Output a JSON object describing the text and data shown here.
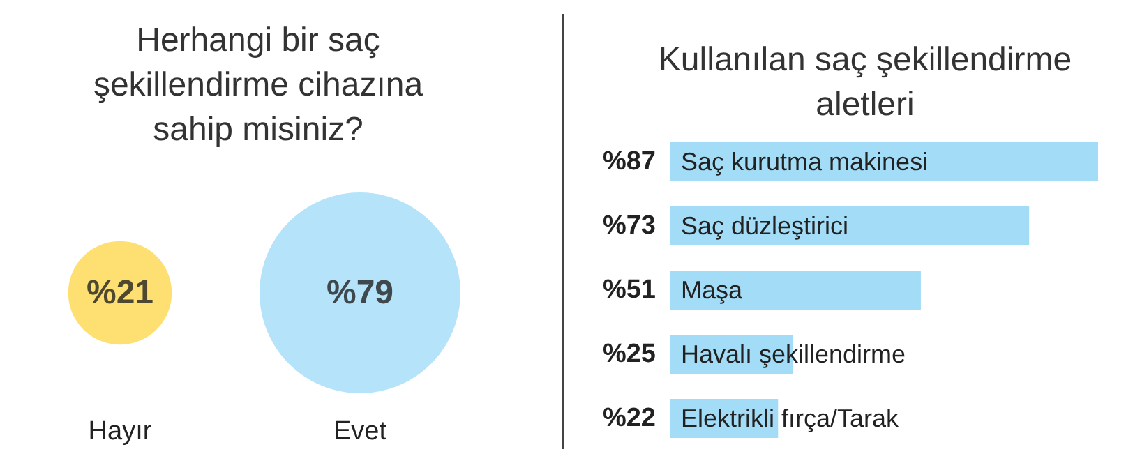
{
  "chart_data": [
    {
      "type": "other",
      "title": "Herhangi bir saç şekillendirme cihazına sahip misiniz?",
      "categories": [
        "Hayır",
        "Evet"
      ],
      "values": [
        21,
        79
      ],
      "colors": [
        "#fdd84e",
        "#a3dcf7"
      ],
      "value_labels": [
        "%21",
        "%79"
      ]
    },
    {
      "type": "bar",
      "orientation": "horizontal",
      "title": "Kullanılan saç şekillendirme aletleri",
      "categories": [
        "Saç kurutma makinesi",
        "Saç düzleştirici",
        "Maşa",
        "Havalı şekillendirme",
        "Elektrikli fırça/Tarak"
      ],
      "values": [
        87,
        73,
        51,
        25,
        22
      ],
      "color": "#a3dcf7",
      "value_labels": [
        "%87",
        "%73",
        "%51",
        "%25",
        "%22"
      ],
      "xlim": [
        0,
        87
      ],
      "tick_labels": "y"
    }
  ]
}
